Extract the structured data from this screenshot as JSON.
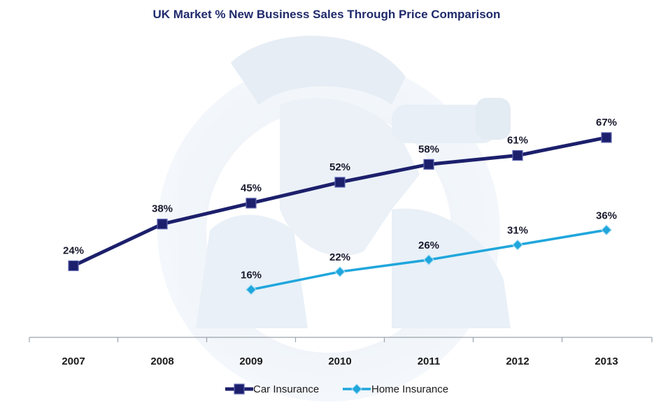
{
  "chart_data": {
    "type": "line",
    "title": "UK Market % New Business Sales Through Price Comparison",
    "categories": [
      "2007",
      "2008",
      "2009",
      "2010",
      "2011",
      "2012",
      "2013"
    ],
    "ylim": [
      0,
      100
    ],
    "grid": false,
    "legend_position": "bottom-center",
    "series": [
      {
        "name": "Car Insurance",
        "color": "#1c1f6b",
        "marker": "square",
        "values": [
          24,
          38,
          45,
          52,
          58,
          61,
          67
        ],
        "labels": [
          "24%",
          "38%",
          "45%",
          "52%",
          "58%",
          "61%",
          "67%"
        ]
      },
      {
        "name": "Home Insurance",
        "color": "#1fa6dc",
        "marker": "diamond",
        "values": [
          null,
          null,
          16,
          22,
          26,
          31,
          36
        ],
        "labels": [
          null,
          null,
          "16%",
          "22%",
          "26%",
          "31%",
          "36%"
        ]
      }
    ]
  }
}
